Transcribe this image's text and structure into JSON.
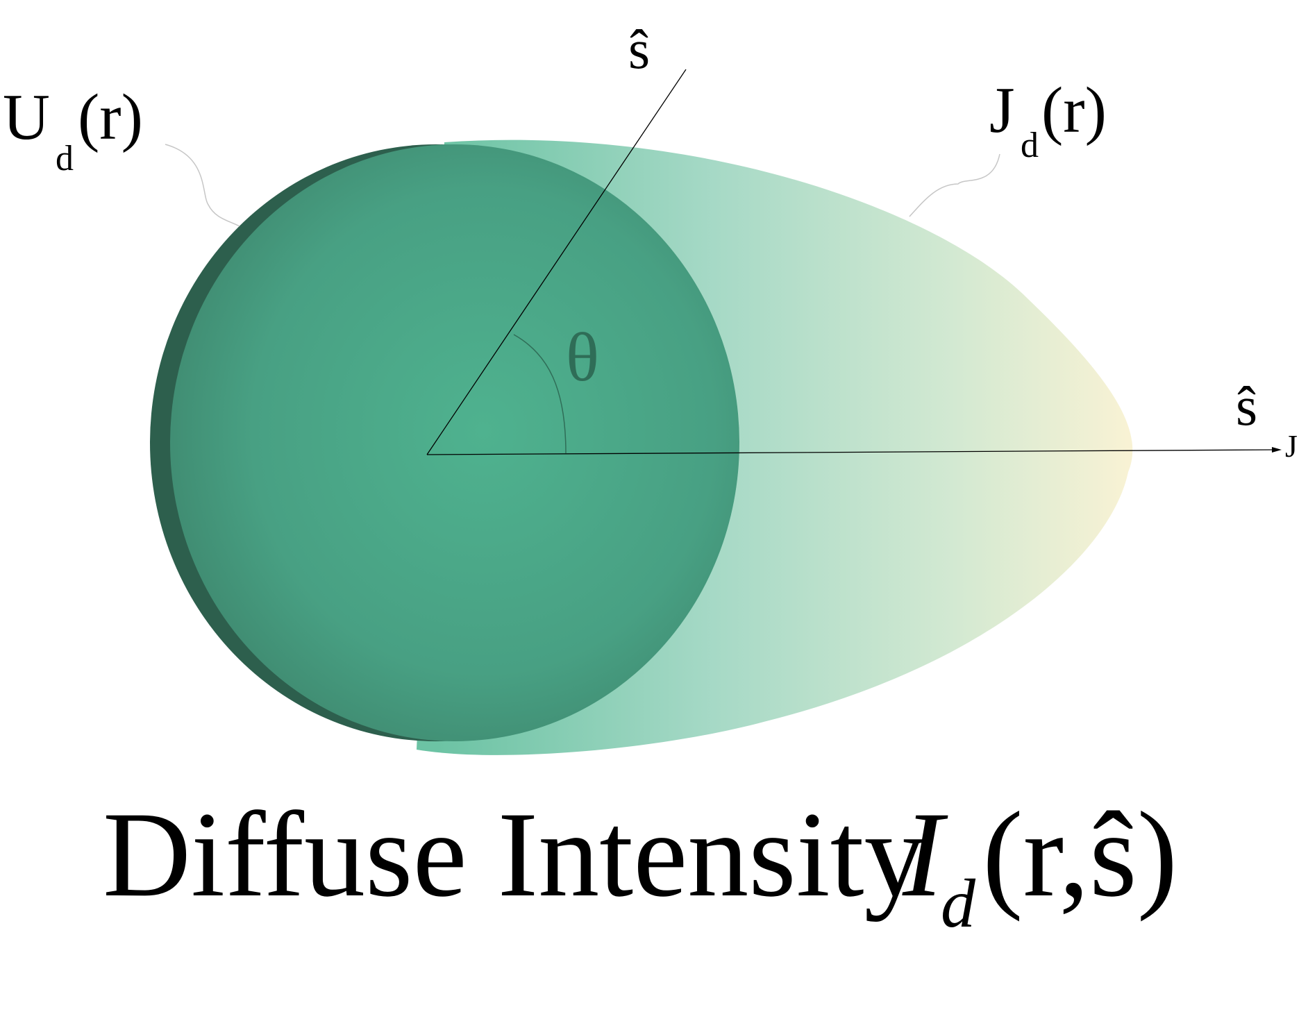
{
  "labels": {
    "s_hat": "ŝ",
    "u_main": "U",
    "u_sub": "d",
    "u_arg": "(r)",
    "j_main": "J",
    "j_sub": "d",
    "j_arg": "(r)",
    "theta": "θ",
    "sj_main": "ŝ",
    "sj_sub": "J"
  },
  "caption": {
    "text": "Diffuse Intensity",
    "symbol": "I",
    "symbol_sub": "d",
    "symbol_arg": "(r,ŝ)"
  },
  "colors": {
    "sphere_center": "#4db08e",
    "sphere_edge": "#3f8a70",
    "sphere_rim": "#2b5c4b",
    "lobe_inner": "#7ecdb1",
    "lobe_outer": "#f6f1d4",
    "line": "#000000",
    "leader": "#c8c8c8"
  }
}
